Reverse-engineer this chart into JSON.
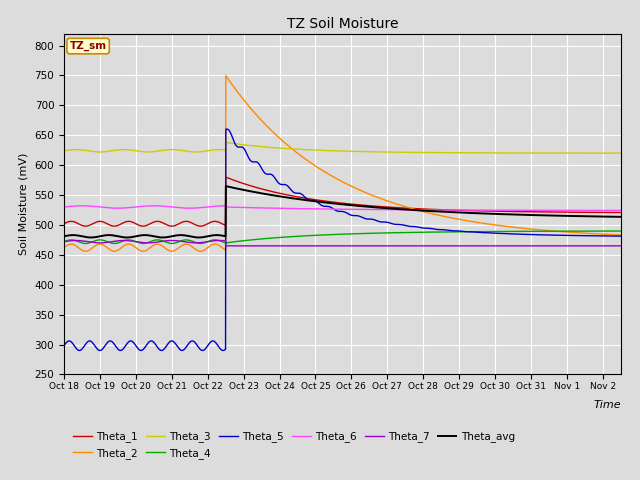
{
  "title": "TZ Soil Moisture",
  "ylabel": "Soil Moisture (mV)",
  "xlabel": "Time",
  "legend_label": "TZ_sm",
  "ylim": [
    250,
    820
  ],
  "yticks": [
    250,
    300,
    350,
    400,
    450,
    500,
    550,
    600,
    650,
    700,
    750,
    800
  ],
  "xtick_labels": [
    "Oct 18",
    "Oct 19",
    "Oct 20",
    "Oct 21",
    "Oct 22",
    "Oct 23",
    "Oct 24",
    "Oct 25",
    "Oct 26",
    "Oct 27",
    "Oct 28",
    "Oct 29",
    "Oct 30",
    "Oct 31",
    "Nov 1",
    "Nov 2"
  ],
  "background_color": "#dcdcdc",
  "plot_bg_color": "#dcdcdc",
  "grid_color": "white",
  "series_colors": {
    "Theta_1": "#cc0000",
    "Theta_2": "#ff8800",
    "Theta_3": "#cccc00",
    "Theta_4": "#00aa00",
    "Theta_5": "#0000cc",
    "Theta_6": "#ff44ff",
    "Theta_7": "#9900cc",
    "Theta_avg": "#000000"
  },
  "event_day": 4.5
}
